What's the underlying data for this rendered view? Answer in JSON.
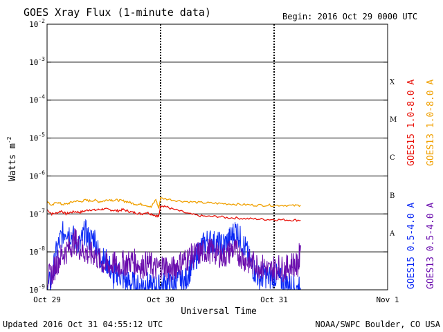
{
  "title": "GOES Xray Flux (1-minute data)",
  "begin_label": "Begin:  2016 Oct 29 0000 UTC",
  "updated_label": "Updated 2016 Oct 31 04:55:12 UTC",
  "credit_label": "NOAA/SWPC Boulder, CO USA",
  "chart_data": {
    "type": "line",
    "title": "GOES Xray Flux (1-minute data)",
    "xlabel": "Universal Time",
    "ylabel": "Watts m",
    "ylabel_sup": "-2",
    "yscale": "log",
    "ylim": [
      1e-09,
      0.01
    ],
    "xlim": [
      0,
      72
    ],
    "x_unit": "hours since 2016 Oct 29 0000 UTC",
    "x_ticks": [
      {
        "x": 0,
        "label": "Oct 29"
      },
      {
        "x": 24,
        "label": "Oct 30"
      },
      {
        "x": 48,
        "label": "Oct 31"
      },
      {
        "x": 72,
        "label": "Nov 1"
      }
    ],
    "y_ticks": [
      {
        "exp": -2,
        "label": "-2"
      },
      {
        "exp": -3,
        "label": "-3"
      },
      {
        "exp": -4,
        "label": "-4"
      },
      {
        "exp": -5,
        "label": "-5"
      },
      {
        "exp": -6,
        "label": "-6"
      },
      {
        "exp": -7,
        "label": "-7"
      },
      {
        "exp": -8,
        "label": "-8"
      },
      {
        "exp": -9,
        "label": "-9"
      }
    ],
    "flare_classes": [
      {
        "label": "X",
        "level": 0.0001
      },
      {
        "label": "M",
        "level": 1e-05
      },
      {
        "label": "C",
        "level": 1e-06
      },
      {
        "label": "B",
        "level": 1e-07
      },
      {
        "label": "A",
        "level": 1e-08
      }
    ],
    "grid": "horizontal at each decade",
    "series": [
      {
        "name": "GOES15 1.0-8.0 A",
        "color": "#e8140c",
        "x": [
          0,
          1,
          2,
          3,
          4,
          5,
          6,
          7,
          8,
          9,
          10,
          11,
          12,
          13,
          14,
          15,
          16,
          17,
          18,
          19,
          20,
          21,
          22,
          23,
          23.6,
          24,
          25,
          26,
          28,
          30,
          32,
          34,
          36,
          38,
          40,
          42,
          44,
          46,
          48,
          50,
          52,
          53.6
        ],
        "y": [
          1.3e-07,
          1e-07,
          1.05e-07,
          1.2e-07,
          1e-07,
          1.1e-07,
          1.15e-07,
          1.1e-07,
          1.2e-07,
          1.3e-07,
          1.25e-07,
          1.3e-07,
          1.35e-07,
          1.3e-07,
          1.25e-07,
          1.2e-07,
          1.3e-07,
          1.2e-07,
          1.1e-07,
          1.05e-07,
          1e-07,
          1.1e-07,
          1e-07,
          9e-08,
          8.5e-08,
          1.7e-07,
          1.6e-07,
          1.4e-07,
          1.2e-07,
          1e-07,
          9e-08,
          8.5e-08,
          8.6e-08,
          8e-08,
          7.8e-08,
          7.5e-08,
          7.4e-08,
          7.2e-08,
          7.1e-08,
          7e-08,
          6.9e-08,
          6.8e-08
        ]
      },
      {
        "name": "GOES13 1.0-8.0 A",
        "color": "#f0a000",
        "x": [
          0,
          1,
          2,
          3,
          4,
          5,
          6,
          7,
          8,
          9,
          10,
          11,
          12,
          13,
          14,
          15,
          16,
          17,
          18,
          19,
          20,
          21,
          22,
          23,
          23.6,
          24,
          26,
          28,
          30,
          32,
          34,
          36,
          38,
          40,
          42,
          44,
          46,
          48,
          50,
          52,
          53.6
        ],
        "y": [
          2.2e-07,
          1.6e-07,
          2.1e-07,
          1.8e-07,
          1.8e-07,
          2e-07,
          2.2e-07,
          2.1e-07,
          2.3e-07,
          2.2e-07,
          2.3e-07,
          2.1e-07,
          2.2e-07,
          2.4e-07,
          2.3e-07,
          2.3e-07,
          2.2e-07,
          2.1e-07,
          1.9e-07,
          1.8e-07,
          1.8e-07,
          1.7e-07,
          1.5e-07,
          2.4e-07,
          1.4e-07,
          2.6e-07,
          2.4e-07,
          2.2e-07,
          2.1e-07,
          2e-07,
          1.95e-07,
          1.9e-07,
          1.85e-07,
          1.8e-07,
          1.75e-07,
          1.7e-07,
          1.7e-07,
          1.68e-07,
          1.7e-07,
          1.65e-07,
          1.7e-07
        ]
      },
      {
        "name": "GOES15 0.5-4.0 A",
        "color": "#0a28f5",
        "x": [
          0,
          1,
          2,
          3,
          4,
          5,
          6,
          7,
          8,
          9,
          10,
          11,
          12,
          13,
          14,
          15,
          16,
          17,
          18,
          19,
          20,
          21,
          22,
          23,
          24,
          25,
          26,
          27,
          28,
          29,
          30,
          31,
          32,
          33,
          34,
          35,
          36,
          37,
          38,
          39,
          40,
          41,
          42,
          43,
          44,
          45,
          46,
          47,
          48,
          49,
          50,
          51,
          52,
          53,
          53.6
        ],
        "y": [
          1e-09,
          2e-09,
          1e-08,
          2.5e-08,
          4e-08,
          3e-08,
          2e-08,
          1.5e-08,
          3.5e-08,
          2e-08,
          2.5e-08,
          8e-09,
          6e-09,
          5e-09,
          2e-09,
          3e-09,
          2e-09,
          1.5e-09,
          1.5e-09,
          1.2e-09,
          1.3e-09,
          1.5e-09,
          1.1e-09,
          1.2e-09,
          1.2e-09,
          1.5e-09,
          1.3e-09,
          1.5e-09,
          2e-09,
          1.5e-09,
          3e-09,
          5e-09,
          1e-08,
          1.5e-08,
          2e-08,
          1.8e-08,
          1.6e-08,
          1.5e-08,
          1.8e-08,
          2.5e-08,
          4e-08,
          2e-08,
          1.2e-08,
          5e-09,
          3e-09,
          2e-09,
          2.5e-09,
          2e-09,
          2.5e-09,
          2e-09,
          1.5e-09,
          1.5e-09,
          1.2e-09,
          1e-09,
          1.1e-09
        ]
      },
      {
        "name": "GOES13 0.5-4.0 A",
        "color": "#6a0dad",
        "x": [
          0,
          1,
          2,
          3,
          4,
          5,
          6,
          7,
          8,
          9,
          10,
          11,
          12,
          13,
          14,
          15,
          16,
          17,
          18,
          19,
          20,
          21,
          22,
          23,
          24,
          25,
          26,
          27,
          28,
          29,
          30,
          31,
          32,
          33,
          34,
          35,
          36,
          37,
          38,
          39,
          40,
          41,
          42,
          43,
          44,
          45,
          46,
          47,
          48,
          49,
          50,
          51,
          52,
          53,
          53.6
        ],
        "y": [
          2e-09,
          2.5e-09,
          5e-09,
          8e-09,
          1e-08,
          1.5e-08,
          2e-08,
          1.2e-08,
          1e-08,
          8e-09,
          9e-09,
          6e-09,
          5e-09,
          4e-09,
          5e-09,
          4e-09,
          5e-09,
          5e-09,
          6e-09,
          5e-09,
          4e-09,
          5e-09,
          4.5e-09,
          3.5e-09,
          4e-09,
          4.5e-09,
          3e-09,
          4e-09,
          5e-09,
          6e-09,
          7e-09,
          8e-09,
          9e-09,
          1e-08,
          1.1e-08,
          1e-08,
          9e-09,
          8e-09,
          8e-09,
          1.2e-08,
          1e-08,
          8e-09,
          6e-09,
          5e-09,
          5e-09,
          4e-09,
          4e-09,
          3e-09,
          4e-09,
          4e-09,
          3.5e-09,
          4e-09,
          5e-09,
          4e-09,
          1.5e-08
        ]
      }
    ]
  }
}
